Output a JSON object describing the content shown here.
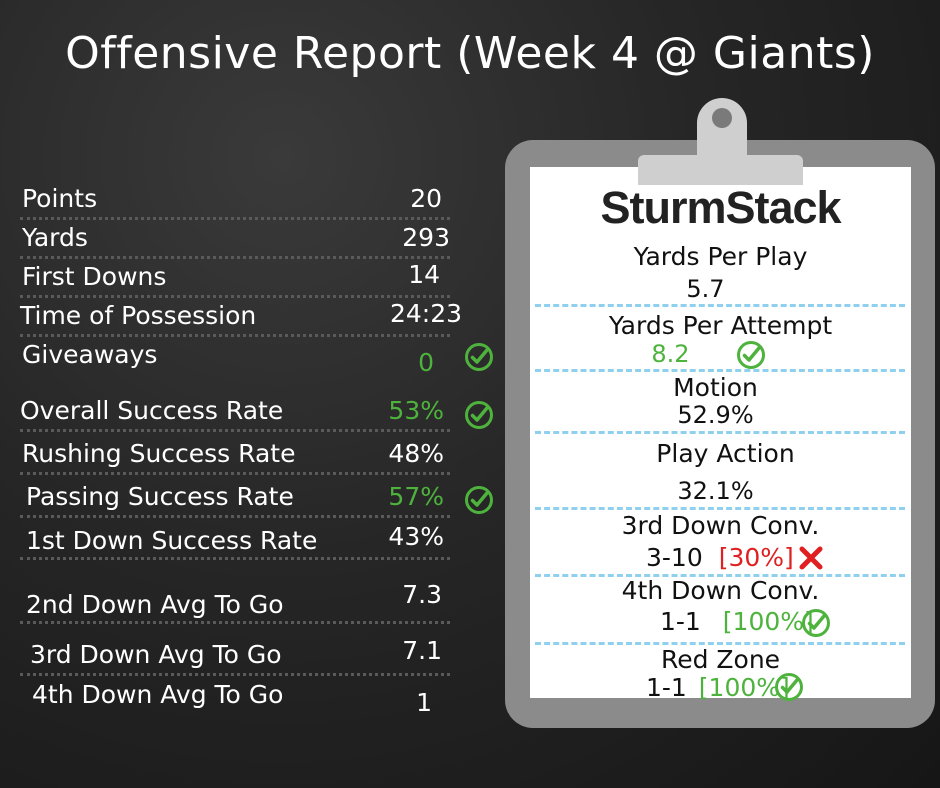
{
  "title": "Offensive Report (Week 4 @ Giants)",
  "stats": [
    {
      "label": "Points",
      "value": "20"
    },
    {
      "label": "Yards",
      "value": "293"
    },
    {
      "label": "First Downs",
      "value": "14"
    },
    {
      "label": "Time of Possession",
      "value": "24:23"
    },
    {
      "label": "Giveaways",
      "value": "0"
    },
    {
      "label": "Overall Success Rate",
      "value": "53%"
    },
    {
      "label": "Rushing Success Rate",
      "value": "48%"
    },
    {
      "label": "Passing Success Rate",
      "value": "57%"
    },
    {
      "label": "1st Down Success Rate",
      "value": "43%"
    },
    {
      "label": "2nd Down Avg To Go",
      "value": "7.3"
    },
    {
      "label": "3rd Down Avg To Go",
      "value": "7.1"
    },
    {
      "label": "4th Down Avg To Go",
      "value": "1"
    }
  ],
  "clipboard": {
    "brand": "SturmStack",
    "metrics": [
      {
        "label": "Yards Per Play",
        "value": "5.7"
      },
      {
        "label": "Yards Per Attempt",
        "value": "8.2"
      },
      {
        "label": "Motion",
        "value": "52.9%"
      },
      {
        "label": "Play Action",
        "value": "32.1%"
      },
      {
        "label": "3rd Down Conv.",
        "value": "3-10",
        "pct": "[30%]"
      },
      {
        "label": "4th Down Conv.",
        "value": "1-1",
        "pct": "[100%]"
      },
      {
        "label": "Red Zone",
        "value": "1-1",
        "pct": "[100%]"
      }
    ]
  },
  "colors": {
    "good": "#4db33d",
    "bad": "#e02020",
    "divider": "#8fd0ee"
  },
  "icons": {
    "check": "check-circle-icon",
    "cross": "x-mark-icon"
  }
}
